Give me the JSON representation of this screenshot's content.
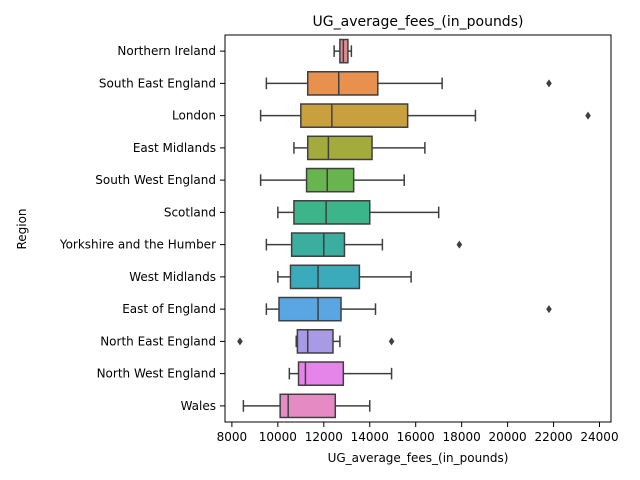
{
  "chart_data": {
    "type": "box",
    "orientation": "horizontal",
    "title": "UG_average_fees_(in_pounds)",
    "xlabel": "UG_average_fees_(in_pounds)",
    "ylabel": "Region",
    "xlim": [
      7700,
      24500
    ],
    "xticks": [
      8000,
      10000,
      12000,
      14000,
      16000,
      18000,
      20000,
      22000,
      24000
    ],
    "grid": false,
    "legend": "none",
    "categories": [
      "Northern Ireland",
      "South East England",
      "London",
      "East Midlands",
      "South West England",
      "Scotland",
      "Yorkshire and the Humber",
      "West Midlands",
      "East of England",
      "North East England",
      "North West England",
      "Wales"
    ],
    "boxes": [
      {
        "whisker_low": 12450,
        "q1": 12700,
        "median": 12850,
        "q3": 13050,
        "whisker_high": 13200,
        "outliers": [],
        "color": "#dd8c93"
      },
      {
        "whisker_low": 9500,
        "q1": 11300,
        "median": 12650,
        "q3": 14350,
        "whisker_high": 17150,
        "outliers": [
          21800
        ],
        "color": "#e8914f"
      },
      {
        "whisker_low": 9250,
        "q1": 11000,
        "median": 12350,
        "q3": 15650,
        "whisker_high": 18600,
        "outliers": [
          23500
        ],
        "color": "#c8a03e"
      },
      {
        "whisker_low": 10700,
        "q1": 11300,
        "median": 12200,
        "q3": 14100,
        "whisker_high": 16400,
        "outliers": [],
        "color": "#a2ab3c"
      },
      {
        "whisker_low": 9250,
        "q1": 11250,
        "median": 12150,
        "q3": 13300,
        "whisker_high": 15500,
        "outliers": [],
        "color": "#68b54f"
      },
      {
        "whisker_low": 10000,
        "q1": 10700,
        "median": 12100,
        "q3": 14000,
        "whisker_high": 17000,
        "outliers": [],
        "color": "#3db58a"
      },
      {
        "whisker_low": 9500,
        "q1": 10600,
        "median": 12000,
        "q3": 12900,
        "whisker_high": 14550,
        "outliers": [
          17900
        ],
        "color": "#3bae9f"
      },
      {
        "whisker_low": 10000,
        "q1": 10550,
        "median": 11750,
        "q3": 13550,
        "whisker_high": 15800,
        "outliers": [],
        "color": "#3babbc"
      },
      {
        "whisker_low": 9500,
        "q1": 10050,
        "median": 11750,
        "q3": 12750,
        "whisker_high": 14250,
        "outliers": [
          21800
        ],
        "color": "#59a6e3"
      },
      {
        "whisker_low": 10800,
        "q1": 10850,
        "median": 11300,
        "q3": 12400,
        "whisker_high": 12700,
        "outliers": [
          8350,
          14950
        ],
        "color": "#a99ae6"
      },
      {
        "whisker_low": 10500,
        "q1": 10900,
        "median": 11200,
        "q3": 12850,
        "whisker_high": 14950,
        "outliers": [],
        "color": "#e585ea"
      },
      {
        "whisker_low": 8500,
        "q1": 10100,
        "median": 10450,
        "q3": 12500,
        "whisker_high": 14000,
        "outliers": [],
        "color": "#e68ac4"
      }
    ]
  }
}
